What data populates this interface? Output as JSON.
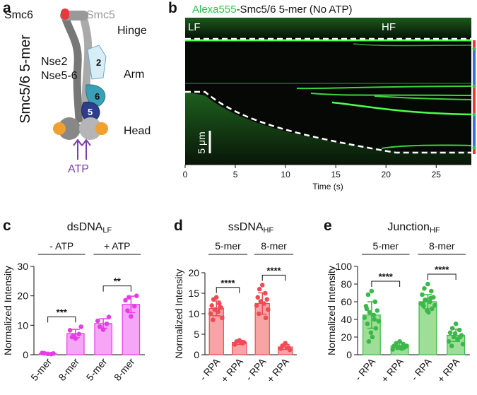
{
  "panel_a": {
    "label": "a",
    "side_title": "Smc5/6 5-mer",
    "labels": {
      "smc6": "Smc6",
      "smc5": "Smc5",
      "hinge": "Hinge",
      "nse2": "Nse2",
      "nse56": "Nse5-6",
      "arm": "Arm",
      "head": "Head",
      "atp": "ATP"
    },
    "subunit_numbers": [
      "2",
      "6",
      "5"
    ]
  },
  "panel_b": {
    "label": "b",
    "title_parts": [
      "Alexa555",
      "-Smc5/6 5-mer (No ATP)"
    ],
    "region_labels": [
      "LF",
      "HF"
    ],
    "scale_bar": "5 μm",
    "xlabel": "Time (s)",
    "xlim": [
      0,
      28.5
    ],
    "xticks": [
      0,
      5,
      10,
      15,
      20,
      25
    ]
  },
  "chart_data": [
    {
      "type": "bar",
      "panel": "c",
      "title": "dsDNA",
      "title_sub": "LF",
      "ylabel": "Normalized Intensity",
      "categories": [
        "5-mer",
        "8-mer",
        "5-mer",
        "8-mer"
      ],
      "values": [
        0.4,
        7.2,
        10.6,
        17.1
      ],
      "errors": [
        0.2,
        1.4,
        1.6,
        2.8
      ],
      "points": [
        [
          0.3,
          0.5,
          0.2,
          0.6,
          0.4
        ],
        [
          5.5,
          6,
          7,
          8.3,
          9.5,
          6.5
        ],
        [
          8.5,
          9.5,
          10.5,
          11.5,
          12.8
        ],
        [
          13,
          15,
          16.5,
          18.5,
          20,
          19.5
        ]
      ],
      "groups": [
        "- ATP",
        "+ ATP"
      ],
      "significance": [
        "***",
        "**"
      ],
      "color": "#e83be8",
      "fill": "#f6a6f6",
      "ylim": [
        0,
        30
      ],
      "yticks": [
        0,
        10,
        20,
        30
      ]
    },
    {
      "type": "bar",
      "panel": "d",
      "title": "ssDNA",
      "title_sub": "HF",
      "ylabel": "Normalized Intensity",
      "categories": [
        "- RPA",
        "+ RPA",
        "- RPA",
        "+ RPA"
      ],
      "values": [
        11.3,
        3.0,
        12.5,
        1.9
      ],
      "errors": [
        1.8,
        0.5,
        2.6,
        0.6
      ],
      "points": [
        [
          14,
          13.5,
          12.5,
          12,
          11.5,
          11,
          10.5,
          10,
          9,
          8.5,
          11.5
        ],
        [
          3.5,
          3.2,
          2.8,
          2.5,
          3
        ],
        [
          17,
          16,
          15,
          14,
          13.5,
          13,
          12.5,
          12,
          11,
          10,
          9
        ],
        [
          2.8,
          2.2,
          1.8,
          1.5,
          1.2
        ]
      ],
      "groups": [
        "5-mer",
        "8-mer"
      ],
      "significance": [
        "****",
        "****"
      ],
      "color": "#ee4b55",
      "fill": "#f8a3a6",
      "ylim": [
        0,
        20
      ],
      "yticks": [
        0,
        5,
        10,
        15,
        20
      ]
    },
    {
      "type": "bar",
      "panel": "e",
      "title": "Junction",
      "title_sub": "HF",
      "ylabel": "Normalized Intensity",
      "categories": [
        "- RPA",
        "+ RPA",
        "- RPA",
        "+ RPA"
      ],
      "values": [
        45,
        10,
        60,
        22
      ],
      "errors": [
        15,
        4,
        8,
        7
      ],
      "points": [
        [
          72,
          68,
          60,
          55,
          50,
          48,
          45,
          42,
          38,
          35,
          30,
          25,
          20,
          15,
          40,
          52
        ],
        [
          15,
          13,
          12,
          10,
          9,
          8,
          7,
          6,
          10,
          11,
          8,
          9
        ],
        [
          80,
          75,
          72,
          68,
          65,
          62,
          60,
          58,
          56,
          55,
          52,
          50,
          48,
          62,
          64,
          58
        ],
        [
          35,
          30,
          28,
          25,
          22,
          20,
          18,
          15,
          12,
          10,
          20,
          24
        ]
      ],
      "groups": [
        "5-mer",
        "8-mer"
      ],
      "significance": [
        "****",
        "****"
      ],
      "color": "#3cb84a",
      "fill": "#9fde99",
      "ylim": [
        0,
        100
      ],
      "yticks": [
        0,
        20,
        40,
        60,
        80,
        100
      ]
    }
  ]
}
